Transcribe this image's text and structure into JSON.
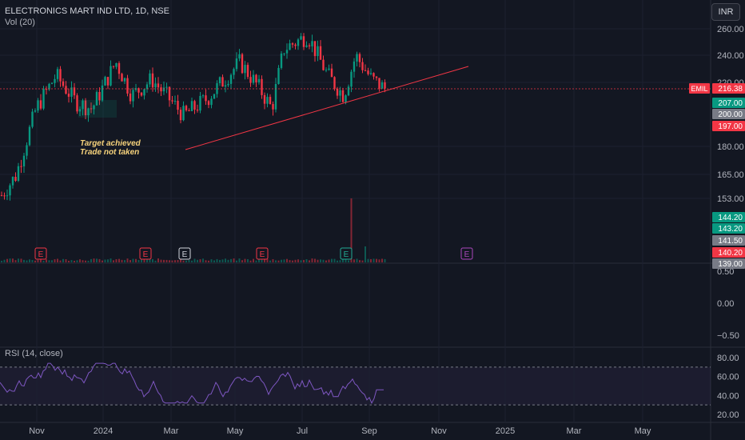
{
  "header": {
    "title": "ELECTRONICS MART IND LTD, 1D, NSE",
    "volume_label": "Vol (20)"
  },
  "currency_button": "INR",
  "annotation": {
    "line1": "Target achieved",
    "line2": "Trade not taken"
  },
  "price_axis": {
    "ticks": [
      "260.00",
      "240.00",
      "220.00",
      "180.00",
      "165.00",
      "153.00"
    ],
    "symbol_tag": "EMIL",
    "tags": [
      {
        "label": "216.38",
        "color": "#f23645"
      },
      {
        "label": "207.00",
        "color": "#089981"
      },
      {
        "label": "200.00",
        "color": "#787b86"
      },
      {
        "label": "197.00",
        "color": "#f23645"
      },
      {
        "label": "144.20",
        "color": "#089981"
      },
      {
        "label": "143.20",
        "color": "#089981"
      },
      {
        "label": "141.50",
        "color": "#787b86"
      },
      {
        "label": "140.20",
        "color": "#f23645"
      },
      {
        "label": "139.00",
        "color": "#787b86"
      }
    ]
  },
  "earnings_markers": [
    {
      "label": "E",
      "color": "#f23645"
    },
    {
      "label": "E",
      "color": "#f23645"
    },
    {
      "label": "E",
      "color": "#d1d4dc"
    },
    {
      "label": "E",
      "color": "#f23645"
    },
    {
      "label": "E",
      "color": "#22ab94"
    },
    {
      "label": "E",
      "color": "#ab47bc"
    }
  ],
  "indicator_axis": {
    "ticks": [
      "0.50",
      "0.00",
      "−0.50"
    ]
  },
  "rsi": {
    "label": "RSI (14, close)",
    "ticks": [
      "80.00",
      "60.00",
      "40.00",
      "20.00"
    ],
    "upper_band": 70,
    "lower_band": 30
  },
  "time_axis": [
    "Nov",
    "2024",
    "Mar",
    "May",
    "Jul",
    "Sep",
    "Nov",
    "2025",
    "Mar",
    "May"
  ],
  "colors": {
    "up": "#089981",
    "down": "#f23645",
    "trendline": "#f23645",
    "rsi": "#7e57c2"
  }
}
